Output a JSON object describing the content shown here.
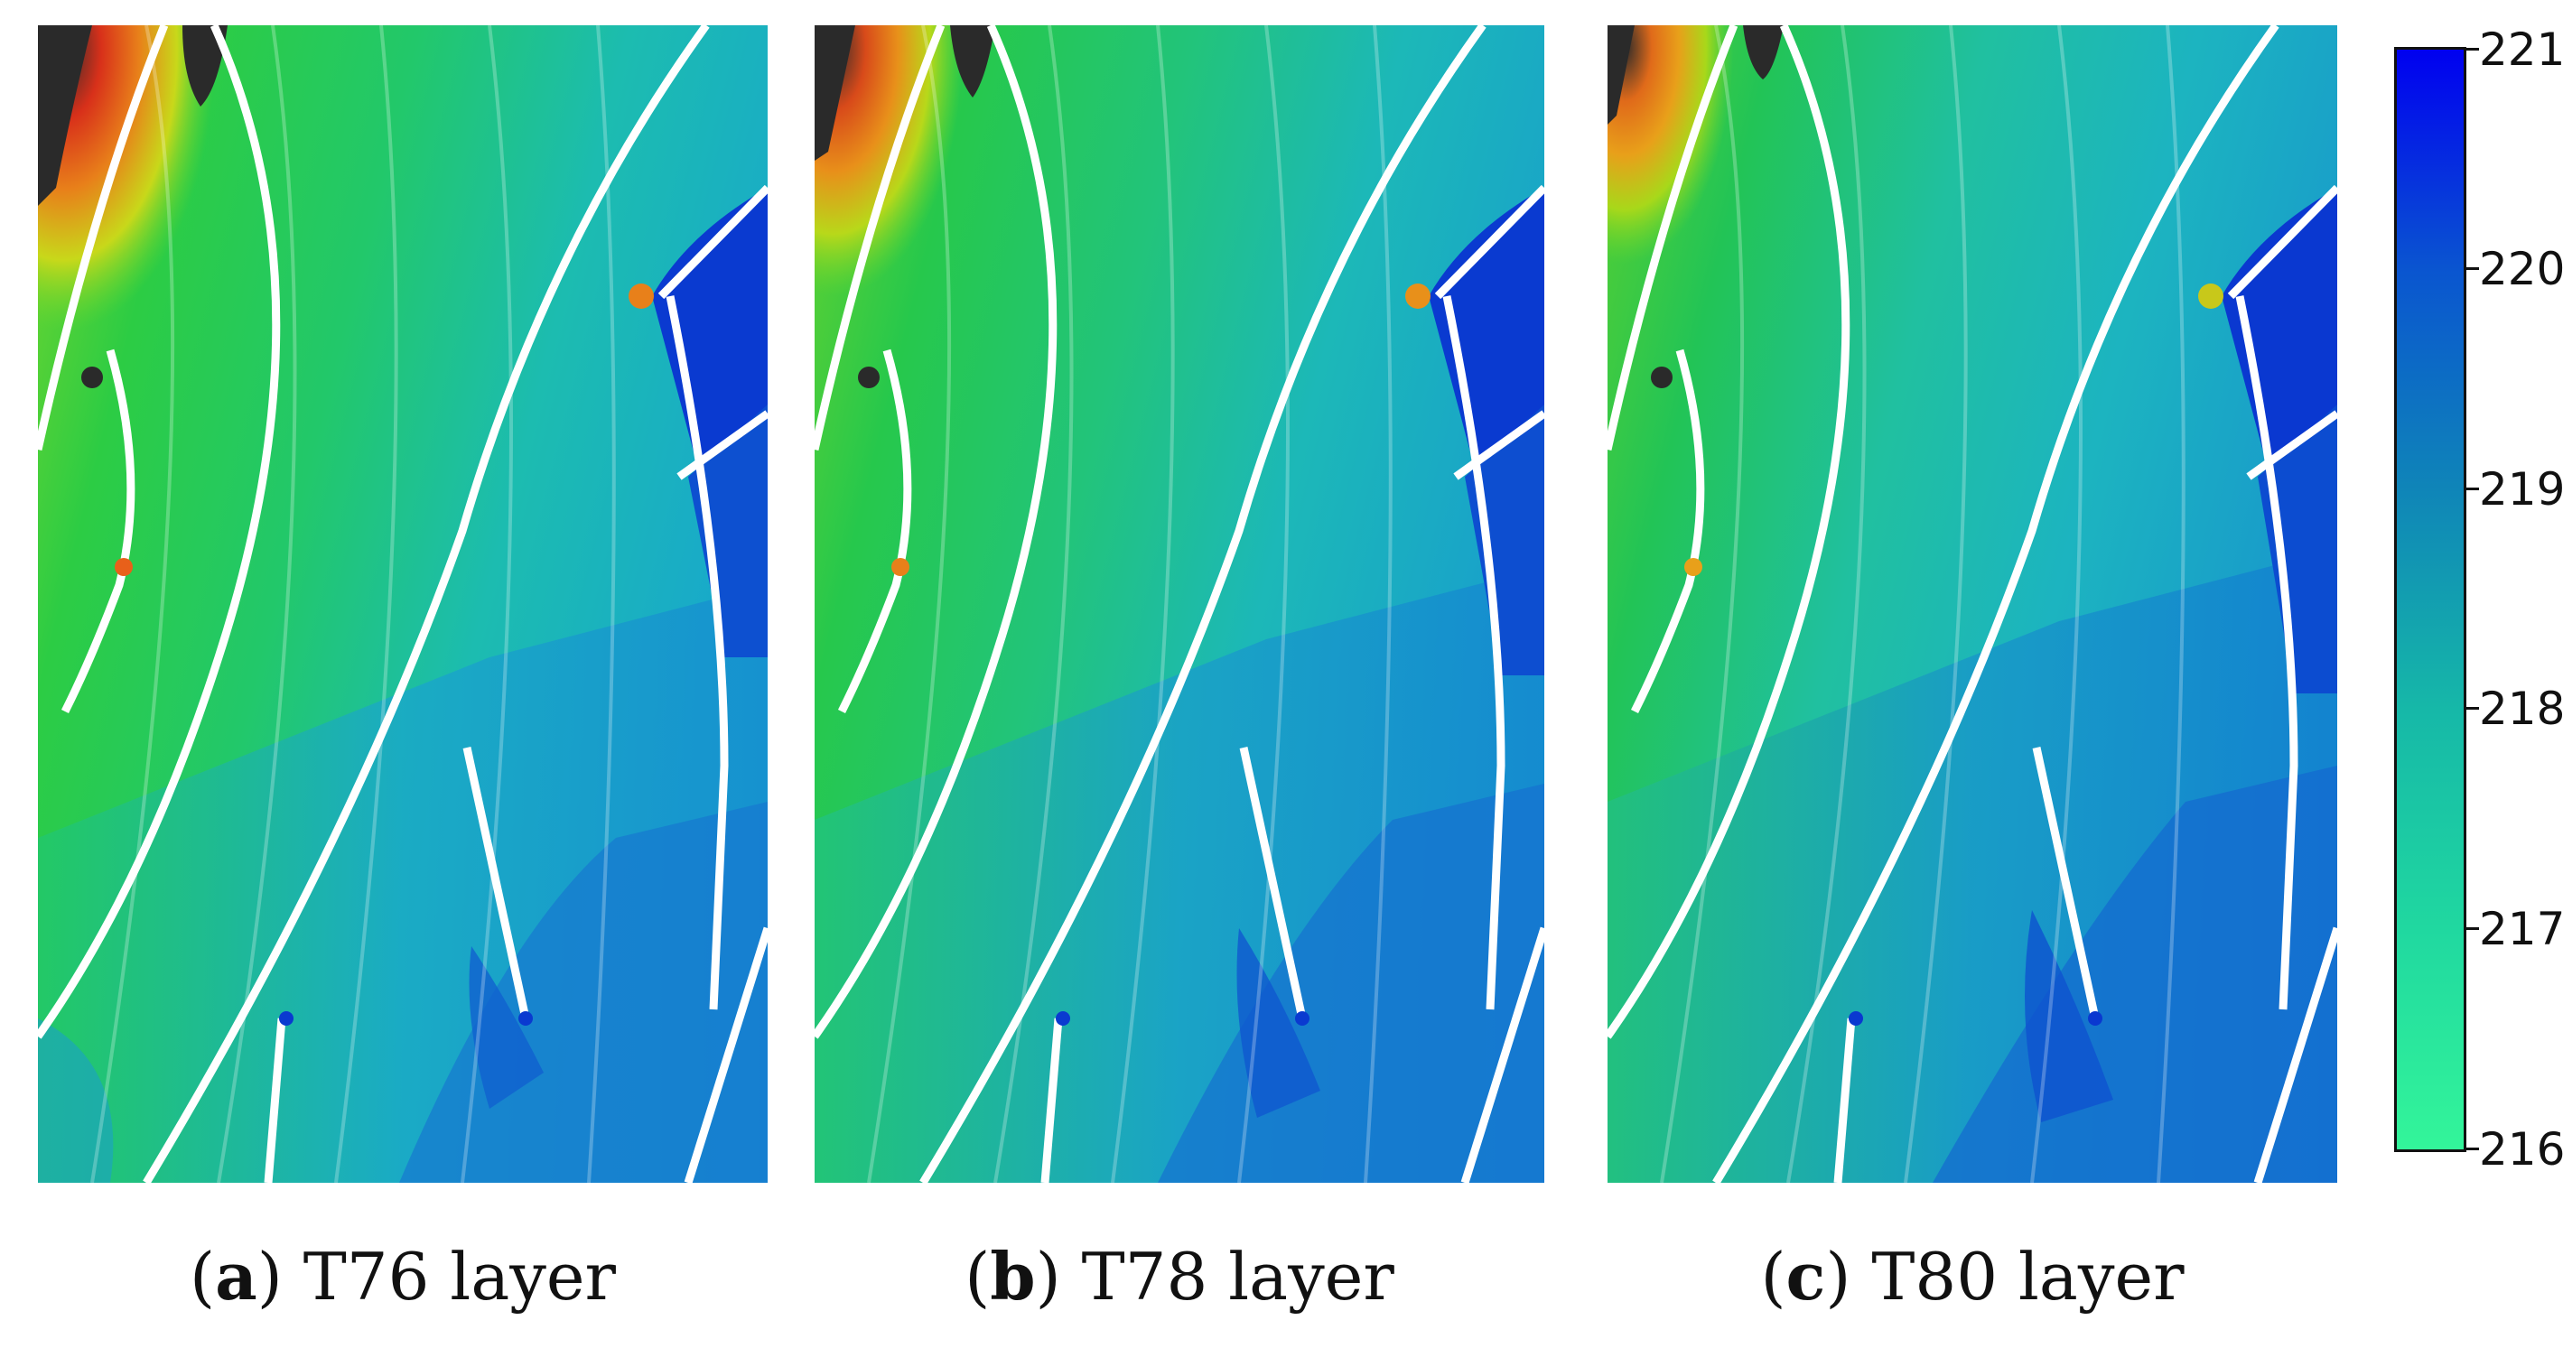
{
  "figure": {
    "panels": [
      {
        "letter": "a",
        "label": " T76 layer"
      },
      {
        "letter": "b",
        "label": " T78 layer"
      },
      {
        "letter": "c",
        "label": " T80 layer"
      }
    ],
    "colorbar": {
      "ticks": [
        "221",
        "220",
        "219",
        "218",
        "217",
        "216"
      ],
      "min": 216,
      "max": 221,
      "colors": [
        "#33f59a",
        "#20d8a0",
        "#16b8a8",
        "#0f85b8",
        "#0a55d0",
        "#0000f0"
      ]
    },
    "field_colors": {
      "hot_dark": "#2a2a2a",
      "hot_red": "#d8301a",
      "hot_orange": "#e8801a",
      "yellow": "#c8d81a",
      "green": "#22c84a",
      "teal": "#20c0b8",
      "light_blue": "#1aa0d0",
      "blue": "#1570d0",
      "deep_blue": "#0a3ad0"
    }
  }
}
